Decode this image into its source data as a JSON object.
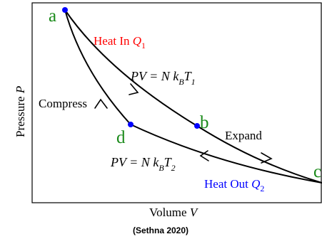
{
  "axes": {
    "xlabel_text": "Volume ",
    "xlabel_var": "V",
    "ylabel_text": "Pressure ",
    "ylabel_var": "P"
  },
  "points": [
    {
      "id": "a",
      "label": "a",
      "dot": true
    },
    {
      "id": "b",
      "label": "b",
      "dot": true
    },
    {
      "id": "c",
      "label": "c",
      "dot": false
    },
    {
      "id": "d",
      "label": "d",
      "dot": true
    }
  ],
  "annotations": {
    "heat_in_text": "Heat In ",
    "heat_in_var": "Q",
    "heat_in_sub": "1",
    "heat_out_text": "Heat Out ",
    "heat_out_var": "Q",
    "heat_out_sub": "2",
    "compress": "Compress",
    "expand": "Expand",
    "iso_hot": {
      "lhs": "PV = N k",
      "k_sub": "B",
      "t": "T",
      "t_sub": "1"
    },
    "iso_cold": {
      "lhs": "PV = N k",
      "k_sub": "B",
      "t": "T",
      "t_sub": "2"
    }
  },
  "caption": "(Sethna 2020)",
  "colors": {
    "curve": "#000000",
    "dot": "#0000ff",
    "point_label": "#1a8a1a",
    "heat_in": "#ff0000",
    "heat_out": "#0000ff"
  }
}
